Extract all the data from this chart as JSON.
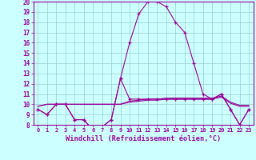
{
  "hours": [
    0,
    1,
    2,
    3,
    4,
    5,
    6,
    7,
    8,
    9,
    10,
    11,
    12,
    13,
    14,
    15,
    16,
    17,
    18,
    19,
    20,
    21,
    22,
    23
  ],
  "temperature": [
    9.5,
    9.0,
    10.0,
    10.0,
    8.5,
    8.5,
    7.5,
    7.8,
    8.5,
    12.5,
    16.0,
    18.8,
    20.0,
    20.0,
    19.5,
    18.0,
    17.0,
    14.0,
    11.0,
    10.5,
    11.0,
    9.5,
    8.0,
    9.5
  ],
  "windchill": [
    9.5,
    9.0,
    10.0,
    10.0,
    8.5,
    8.5,
    7.5,
    7.8,
    8.5,
    12.5,
    10.5,
    10.5,
    10.5,
    10.5,
    10.5,
    10.5,
    10.5,
    10.5,
    10.5,
    10.5,
    11.0,
    9.5,
    8.0,
    9.5
  ],
  "flat1": [
    9.8,
    10.0,
    10.0,
    10.0,
    10.0,
    10.0,
    10.0,
    10.0,
    10.0,
    10.0,
    10.2,
    10.3,
    10.4,
    10.4,
    10.5,
    10.5,
    10.5,
    10.5,
    10.5,
    10.5,
    10.7,
    10.1,
    9.8,
    9.8
  ],
  "flat2": [
    9.8,
    10.0,
    10.0,
    10.0,
    10.0,
    10.0,
    10.0,
    10.0,
    10.0,
    10.0,
    10.3,
    10.4,
    10.5,
    10.5,
    10.6,
    10.6,
    10.6,
    10.6,
    10.6,
    10.6,
    10.8,
    10.2,
    9.9,
    9.9
  ],
  "line_color": "#990099",
  "bg_color": "#ccffff",
  "grid_color": "#99cccc",
  "ylim": [
    8,
    20
  ],
  "yticks": [
    8,
    9,
    10,
    11,
    12,
    13,
    14,
    15,
    16,
    17,
    18,
    19,
    20
  ],
  "xlabel": "Windchill (Refroidissement éolien,°C)"
}
